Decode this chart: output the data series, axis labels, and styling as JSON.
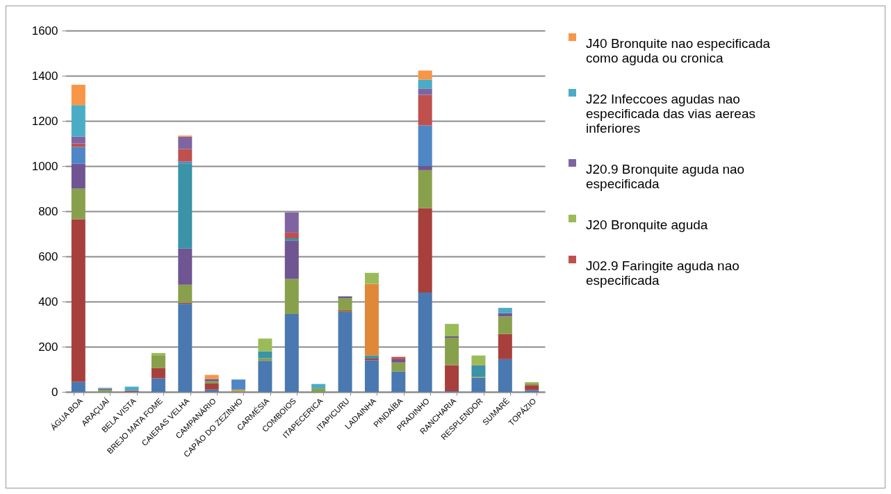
{
  "chart_data": {
    "type": "bar",
    "stacked": true,
    "categories": [
      "ÁGUA BOA",
      "ARAÇUAÍ",
      "BELA VISTA",
      "BREJO MATA FOME",
      "CAIERAS VELHA",
      "CAMPANÁRIO",
      "CAPÃO DO ZEZINHO",
      "CARMÉSIA",
      "COMBOIOS",
      "ITAPECERICA",
      "ITAPICURU",
      "LADAINHA",
      "PINDAÍBA",
      "PRADINHO",
      "RANCHARIA",
      "RESPLENDOR",
      "SUMARÉ",
      "TOPÁZIO"
    ],
    "series": [
      {
        "color": "#4a78b0",
        "values": [
          45,
          null,
          null,
          60,
          390,
          10,
          null,
          138,
          345,
          null,
          355,
          140,
          90,
          440,
          3,
          63,
          145,
          8
        ]
      },
      {
        "color": "#a7403d",
        "values": [
          720,
          null,
          5,
          45,
          5,
          27,
          null,
          null,
          null,
          null,
          5,
          8,
          null,
          374,
          115,
          null,
          111,
          22
        ]
      },
      {
        "color": "#88a04c",
        "values": [
          135,
          8,
          null,
          55,
          80,
          10,
          5,
          11,
          155,
          15,
          55,
          null,
          40,
          168,
          122,
          4,
          78,
          9
        ]
      },
      {
        "color": "#6f5592",
        "values": [
          110,
          6,
          null,
          null,
          160,
          10,
          null,
          null,
          170,
          null,
          8,
          null,
          15,
          18,
          6,
          null,
          15,
          null
        ]
      },
      {
        "color": "#3a93a6",
        "values": [
          null,
          null,
          null,
          null,
          375,
          null,
          null,
          30,
          10,
          null,
          null,
          13,
          null,
          null,
          null,
          51,
          null,
          null
        ]
      },
      {
        "color": "#e0883a",
        "values": [
          null,
          null,
          null,
          null,
          null,
          null,
          5,
          null,
          null,
          null,
          null,
          317,
          null,
          null,
          null,
          2,
          null,
          null
        ]
      },
      {
        "color": "#4f86c6",
        "values": [
          75,
          null,
          null,
          null,
          10,
          null,
          45,
          null,
          null,
          null,
          null,
          null,
          null,
          180,
          null,
          null,
          null,
          null
        ]
      },
      {
        "name": "J02.9 Faringite aguda nao especificada",
        "color": "#c0504d",
        "values": [
          15,
          null,
          null,
          null,
          55,
          null,
          null,
          null,
          25,
          null,
          null,
          null,
          10,
          135,
          null,
          null,
          null,
          null
        ]
      },
      {
        "name": "J20 Bronquite aguda",
        "color": "#9bbb59",
        "values": [
          null,
          null,
          null,
          12,
          null,
          null,
          null,
          57,
          null,
          null,
          null,
          49,
          null,
          null,
          55,
          41,
          null,
          4
        ]
      },
      {
        "name": "J20.9 Bronquite aguda nao especificada",
        "color": "#8064a2",
        "values": [
          30,
          null,
          null,
          null,
          55,
          null,
          null,
          null,
          90,
          null,
          null,
          null,
          null,
          27,
          null,
          null,
          null,
          null
        ]
      },
      {
        "name": "J22 Infeccoes agudas nao especificada das vias aereas inferiores",
        "color": "#4bacc6",
        "values": [
          140,
          4,
          18,
          null,
          null,
          null,
          null,
          null,
          null,
          20,
          null,
          null,
          null,
          41,
          null,
          null,
          23,
          null
        ]
      },
      {
        "name": "J40 Bronquite nao especificada como aguda ou cronica",
        "color": "#f79646",
        "values": [
          90,
          null,
          null,
          null,
          5,
          18,
          null,
          null,
          null,
          null,
          null,
          null,
          null,
          40,
          null,
          null,
          null,
          null
        ]
      }
    ],
    "ylim": [
      0,
      1600
    ],
    "yticks": [
      0,
      200,
      400,
      600,
      800,
      1000,
      1200,
      1400,
      1600
    ],
    "grid": "y",
    "legend": "right"
  }
}
